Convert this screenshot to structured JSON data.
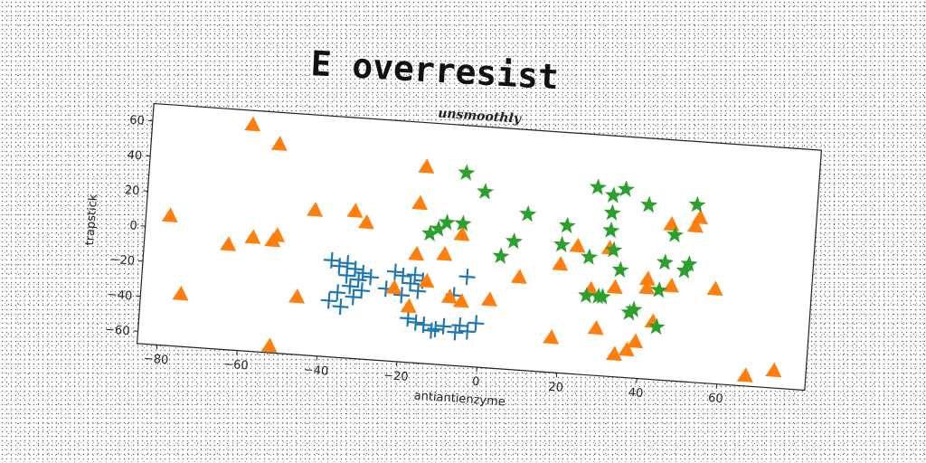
{
  "title": "E overresist",
  "chart_data": {
    "type": "scatter",
    "subtitle": "unsmoothly",
    "xlabel": "antiantienzyme",
    "ylabel": "trapstick",
    "xlim": [
      -85,
      82
    ],
    "ylim": [
      -67,
      70
    ],
    "xticks": [
      -80,
      -60,
      -40,
      -20,
      0,
      20,
      40,
      60
    ],
    "yticks": [
      -60,
      -40,
      -20,
      0,
      20,
      40,
      60
    ],
    "grid": false,
    "series": [
      {
        "marker": "plus",
        "color": "#1f77b4",
        "points": [
          [
            -38,
            -12
          ],
          [
            -36,
            -15
          ],
          [
            -34,
            -13
          ],
          [
            -32,
            -16
          ],
          [
            -30,
            -18
          ],
          [
            -34,
            -20
          ],
          [
            -31,
            -22
          ],
          [
            -28,
            -20
          ],
          [
            -33,
            -26
          ],
          [
            -30,
            -28
          ],
          [
            -36,
            -30
          ],
          [
            -32,
            -32
          ],
          [
            -38,
            -35
          ],
          [
            -35,
            -38
          ],
          [
            -22,
            -16
          ],
          [
            -20,
            -18
          ],
          [
            -17,
            -17
          ],
          [
            -15,
            -20
          ],
          [
            -18,
            -22
          ],
          [
            -24,
            -26
          ],
          [
            -20,
            -29
          ],
          [
            -16,
            -26
          ],
          [
            -4,
            -16
          ],
          [
            -7,
            -27
          ],
          [
            -16,
            -44
          ],
          [
            -14,
            -45
          ],
          [
            -11,
            -47
          ],
          [
            -9,
            -45
          ],
          [
            -5,
            -44
          ],
          [
            -3,
            -47
          ],
          [
            -12,
            -48
          ],
          [
            -6,
            -48
          ],
          [
            -1,
            -42
          ],
          [
            -18,
            -42
          ]
        ]
      },
      {
        "marker": "triangle",
        "color": "#ff7f0e",
        "points": [
          [
            -60,
            62
          ],
          [
            -53,
            52
          ],
          [
            -79,
            7
          ],
          [
            -75,
            -37
          ],
          [
            -64,
            -7
          ],
          [
            -58,
            -2
          ],
          [
            -52,
            0
          ],
          [
            -53,
            -3
          ],
          [
            -46,
            -34
          ],
          [
            -43,
            16
          ],
          [
            -33,
            17
          ],
          [
            -30,
            11
          ],
          [
            -22,
            -25
          ],
          [
            -17,
            -5
          ],
          [
            -17,
            24
          ],
          [
            -16,
            45
          ],
          [
            -18,
            -35
          ],
          [
            -14,
            -20
          ],
          [
            -10,
            -4
          ],
          [
            -8,
            -28
          ],
          [
            -5,
            -30
          ],
          [
            -6,
            8
          ],
          [
            2,
            -28
          ],
          [
            9,
            -14
          ],
          [
            19,
            -5
          ],
          [
            18,
            -47
          ],
          [
            23,
            6
          ],
          [
            27,
            -18
          ],
          [
            29,
            -40
          ],
          [
            31,
            6
          ],
          [
            33,
            -16
          ],
          [
            34,
            -54
          ],
          [
            37,
            -51
          ],
          [
            39,
            -46
          ],
          [
            41,
            -15
          ],
          [
            41,
            -10
          ],
          [
            43,
            -34
          ],
          [
            46,
            22
          ],
          [
            47,
            -13
          ],
          [
            52,
            22
          ],
          [
            53,
            27
          ],
          [
            58,
            -13
          ],
          [
            67,
            -61
          ],
          [
            74,
            -57
          ],
          [
            -52,
            -63
          ]
        ]
      },
      {
        "marker": "star",
        "color": "#2ca02c",
        "points": [
          [
            -14,
            7
          ],
          [
            -12,
            10
          ],
          [
            -10,
            14
          ],
          [
            -6,
            14
          ],
          [
            -6,
            43
          ],
          [
            -1,
            33
          ],
          [
            4,
            -3
          ],
          [
            7,
            6
          ],
          [
            10,
            22
          ],
          [
            19,
            6
          ],
          [
            20,
            17
          ],
          [
            26,
            0
          ],
          [
            26,
            -22
          ],
          [
            27,
            40
          ],
          [
            29,
            -22
          ],
          [
            31,
            36
          ],
          [
            31,
            26
          ],
          [
            31,
            16
          ],
          [
            32,
            5
          ],
          [
            34,
            40
          ],
          [
            34,
            -6
          ],
          [
            37,
            -30
          ],
          [
            38,
            -28
          ],
          [
            40,
            32
          ],
          [
            44,
            -16
          ],
          [
            44,
            -37
          ],
          [
            45,
            0
          ],
          [
            47,
            16
          ],
          [
            50,
            -4
          ],
          [
            51,
            0
          ],
          [
            52,
            34
          ],
          [
            30,
            -22
          ]
        ]
      }
    ]
  }
}
